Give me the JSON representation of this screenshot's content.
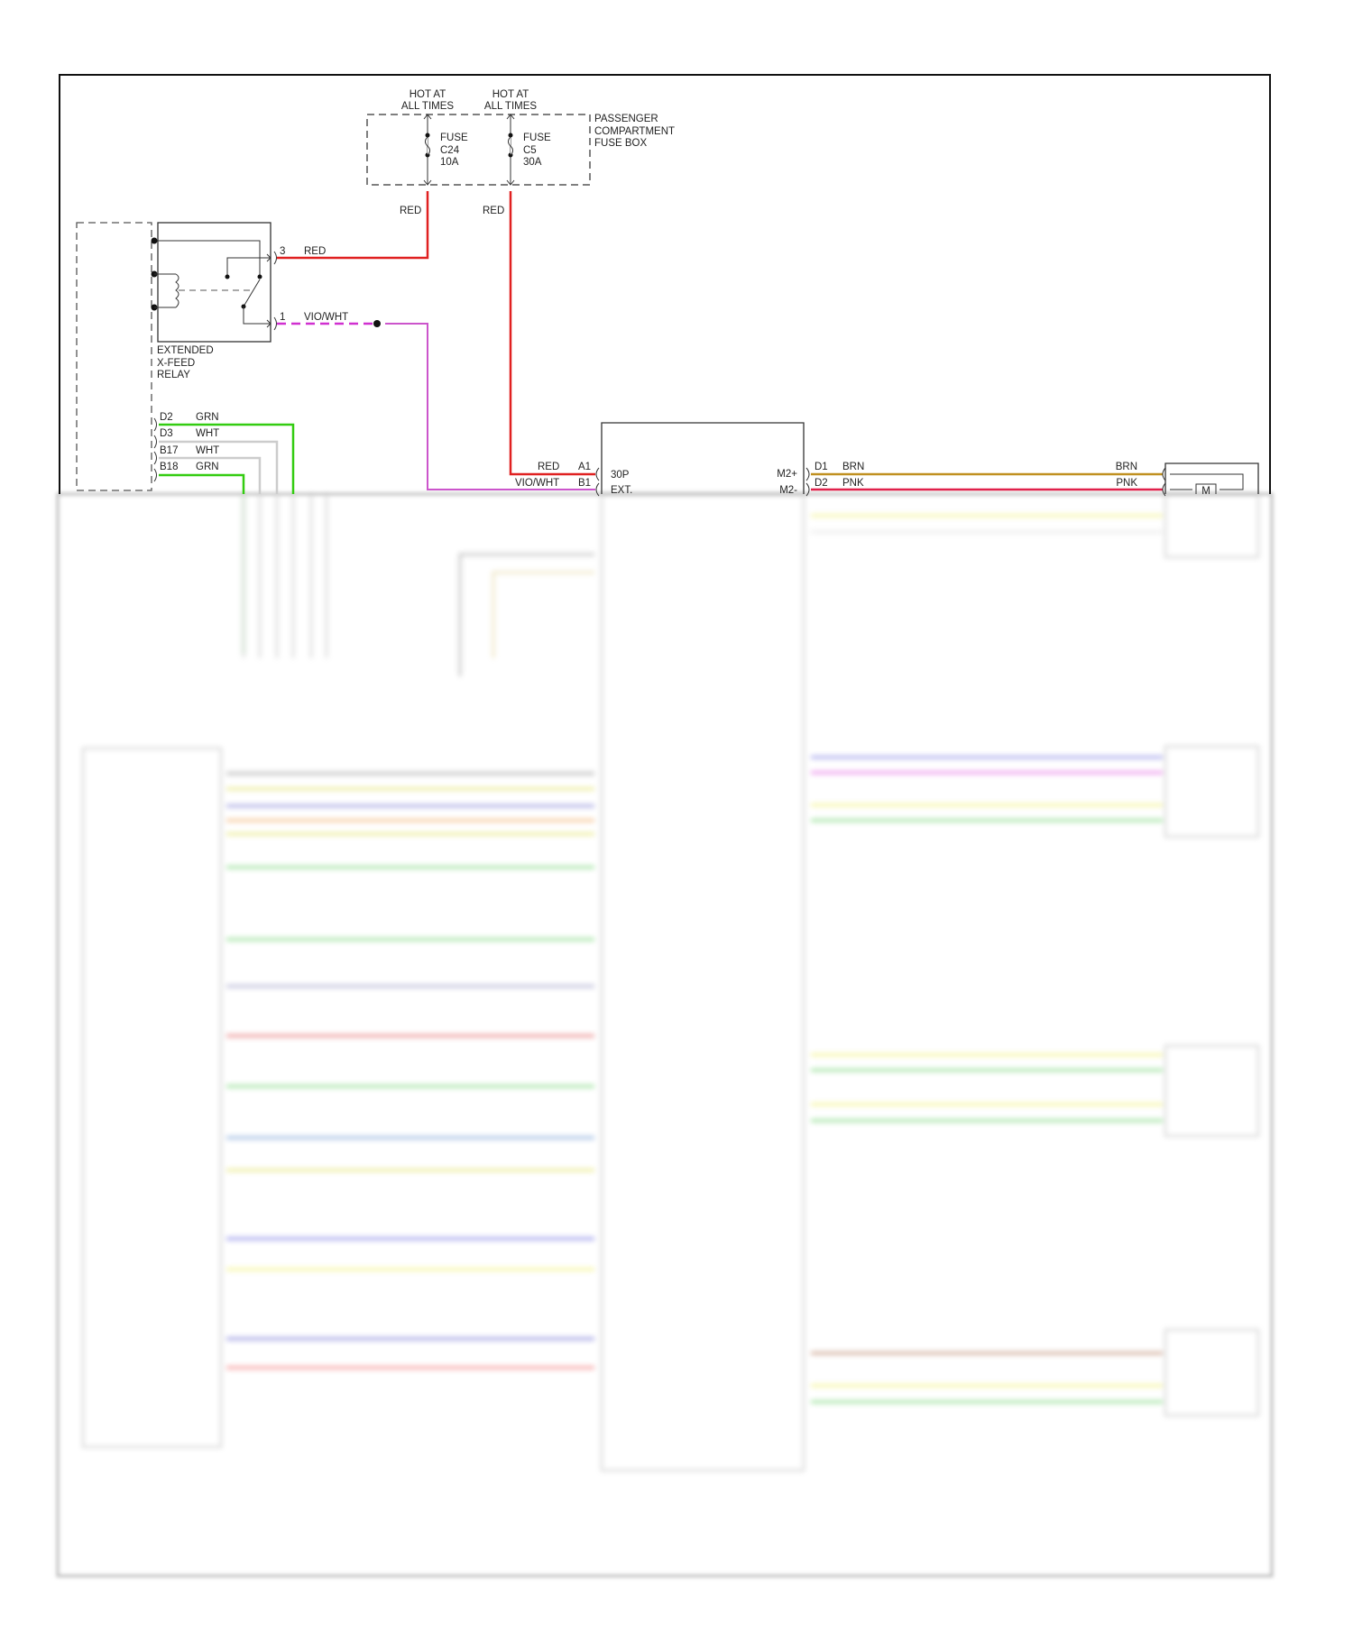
{
  "fuse_box": {
    "hot1": [
      "HOT AT",
      "ALL TIMES"
    ],
    "hot2": [
      "HOT AT",
      "ALL TIMES"
    ],
    "fuse1": [
      "FUSE",
      "C24",
      "10A"
    ],
    "fuse2": [
      "FUSE",
      "C5",
      "30A"
    ],
    "label": [
      "PASSENGER",
      "COMPARTMENT",
      "FUSE BOX"
    ],
    "wire1_color": "RED",
    "wire2_color": "RED"
  },
  "relay": {
    "label": [
      "EXTENDED",
      "X-FEED",
      "RELAY"
    ],
    "pin3": "3",
    "pin3_color": "RED",
    "pin1": "1",
    "pin1_color": "VIO/WHT"
  },
  "left_connector": {
    "pins": [
      {
        "pin": "D2",
        "color": "GRN"
      },
      {
        "pin": "D3",
        "color": "WHT"
      },
      {
        "pin": "B17",
        "color": "WHT"
      },
      {
        "pin": "B18",
        "color": "GRN"
      }
    ]
  },
  "module": {
    "pin_a1": "A1",
    "pin_a1_color": "RED",
    "pin_a1_name": "30P",
    "pin_b1": "B1",
    "pin_b1_color": "VIO/WHT",
    "pin_b1_name": "EXT.",
    "pin_m2p": "M2+",
    "pin_m2m": "M2-"
  },
  "motor": {
    "d1": "D1",
    "d1_color": "BRN",
    "d1_color_right": "BRN",
    "d2": "D2",
    "d2_color": "PNK",
    "d2_color_right": "PNK",
    "symbol": "M"
  },
  "colors": {
    "red": "#e02020",
    "violet": "#d040d0",
    "green": "#33cc11",
    "white_wire": "#cccccc",
    "brown": "#c09020",
    "pink": "#e0204a"
  }
}
